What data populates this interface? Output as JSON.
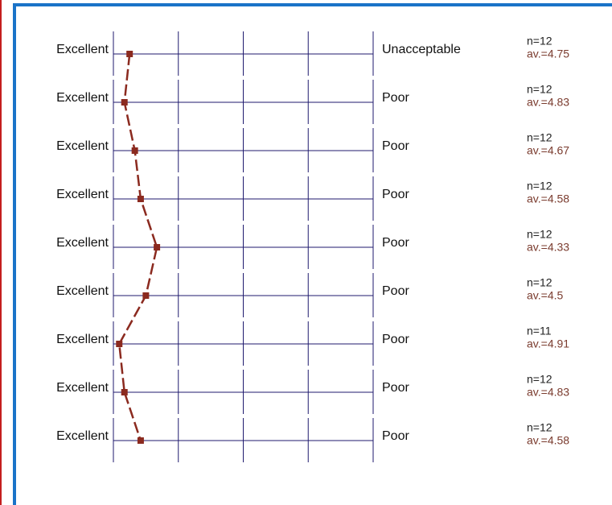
{
  "chart_data": {
    "type": "line",
    "categories": [
      "Excellent",
      "Excellent",
      "Excellent",
      "Excellent",
      "Excellent",
      "Excellent",
      "Excellent",
      "Excellent",
      "Excellent"
    ],
    "right_labels": [
      "Unacceptable",
      "Poor",
      "Poor",
      "Poor",
      "Poor",
      "Poor",
      "Poor",
      "Poor",
      "Poor"
    ],
    "n_labels": [
      "n=12",
      "n=12",
      "n=12",
      "n=12",
      "n=12",
      "n=12",
      "n=11",
      "n=12",
      "n=12"
    ],
    "values": [
      4.75,
      4.83,
      4.67,
      4.58,
      4.33,
      4.5,
      4.91,
      4.83,
      4.58
    ],
    "value_labels": [
      "av.=4.75",
      "av.=4.83",
      "av.=4.67",
      "av.=4.58",
      "av.=4.33",
      "av.=4.5",
      "av.=4.91",
      "av.=4.83",
      "av.=4.58"
    ],
    "color": "#8b2a1f",
    "xlim": [
      5,
      1
    ],
    "xticks": [
      5,
      4,
      3,
      2,
      1
    ],
    "grid": true
  }
}
